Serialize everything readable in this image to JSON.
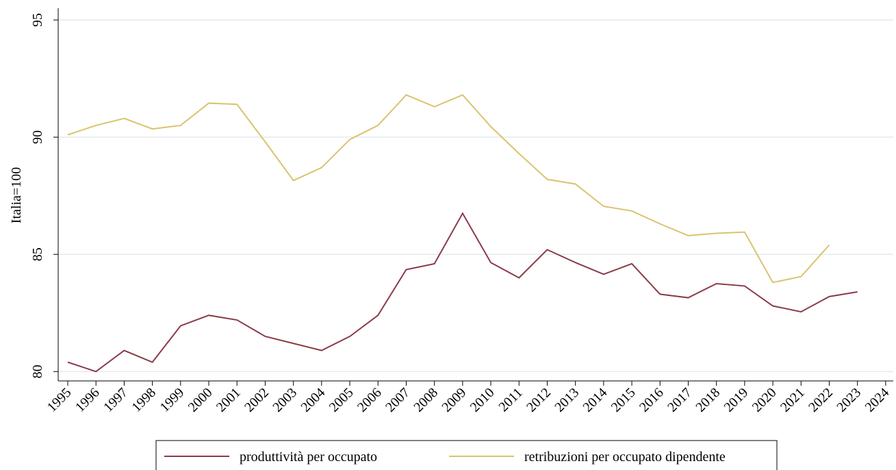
{
  "chart_data": {
    "type": "line",
    "ylabel": "Italia=100",
    "x": [
      1995,
      1996,
      1997,
      1998,
      1999,
      2000,
      2001,
      2002,
      2003,
      2004,
      2005,
      2006,
      2007,
      2008,
      2009,
      2010,
      2011,
      2012,
      2013,
      2014,
      2015,
      2016,
      2017,
      2018,
      2019,
      2020,
      2021,
      2022,
      2023
    ],
    "series": [
      {
        "name": "produttività per occupato",
        "color": "#8b3a48",
        "values": [
          80.4,
          80.0,
          80.9,
          80.4,
          81.95,
          82.4,
          82.2,
          81.5,
          81.2,
          80.9,
          81.5,
          82.4,
          84.35,
          84.6,
          86.75,
          84.65,
          84.0,
          85.2,
          84.65,
          84.15,
          84.6,
          83.3,
          83.15,
          83.75,
          83.65,
          82.8,
          82.55,
          83.2,
          83.4
        ]
      },
      {
        "name": "retribuzioni per occupato dipendente",
        "color": "#d9c36e",
        "values": [
          90.1,
          90.5,
          90.8,
          90.35,
          90.5,
          91.45,
          91.4,
          89.8,
          88.15,
          88.7,
          89.9,
          90.5,
          91.8,
          91.3,
          91.8,
          90.45,
          89.3,
          88.2,
          88.0,
          87.05,
          86.85,
          86.3,
          85.8,
          85.9,
          85.95,
          83.8,
          84.05,
          85.4,
          null
        ]
      }
    ],
    "xlim": [
      1994.66,
      2024.27
    ],
    "xticks": [
      1995,
      1996,
      1997,
      1998,
      1999,
      2000,
      2001,
      2002,
      2003,
      2004,
      2005,
      2006,
      2007,
      2008,
      2009,
      2010,
      2011,
      2012,
      2013,
      2014,
      2015,
      2016,
      2017,
      2018,
      2019,
      2020,
      2021,
      2022,
      2023,
      2024
    ],
    "ylim": [
      79.6,
      95.5
    ],
    "yticks": [
      80,
      85,
      90,
      95
    ],
    "grid": true,
    "legend": "bottom"
  }
}
